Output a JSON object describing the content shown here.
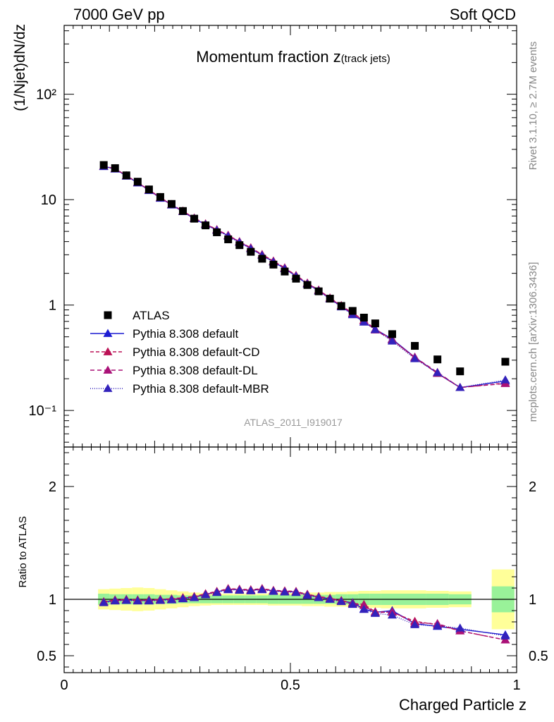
{
  "header": {
    "left": "7000 GeV pp",
    "right": "Soft QCD"
  },
  "side": {
    "rivet": "Rivet 3.1.10, ≥ 2.7M events",
    "mcplots": "mcplots.cern.ch [arXiv:1306.3436]"
  },
  "chart_data": [
    {
      "type": "scatter",
      "title_main": "Momentum fraction ",
      "title_var": "z",
      "title_sub": "(track jets)",
      "ylabel": "(1/Njet)dN/dz",
      "yscale": "log",
      "ylim": [
        0.045,
        450
      ],
      "xlim": [
        0,
        1
      ],
      "y_tick_labels": [
        "10⁻¹",
        "1",
        "10",
        "10²"
      ],
      "watermark": "ATLAS_2011_I919017",
      "legend_position": "lower-left",
      "x": [
        0.0875,
        0.1125,
        0.1375,
        0.1625,
        0.1875,
        0.2125,
        0.2375,
        0.2625,
        0.2875,
        0.3125,
        0.3375,
        0.3625,
        0.3875,
        0.4125,
        0.4375,
        0.4625,
        0.4875,
        0.5125,
        0.5375,
        0.5625,
        0.5875,
        0.6125,
        0.6375,
        0.6625,
        0.6875,
        0.725,
        0.775,
        0.825,
        0.875,
        0.975
      ],
      "series": [
        {
          "name": "ATLAS",
          "color": "#000000",
          "marker": "square",
          "values": [
            21.3,
            19.9,
            17.0,
            14.8,
            12.5,
            10.6,
            9.1,
            7.8,
            6.6,
            5.7,
            4.9,
            4.2,
            3.7,
            3.2,
            2.75,
            2.42,
            2.08,
            1.78,
            1.55,
            1.35,
            1.15,
            0.98,
            0.88,
            0.76,
            0.67,
            0.53,
            0.41,
            0.305,
            0.235,
            0.29
          ]
        },
        {
          "name": "Pythia 8.308 default",
          "color": "#1c1cd2",
          "marker": "triangle",
          "dash": "",
          "values": [
            20.7,
            19.6,
            16.8,
            14.5,
            12.3,
            10.4,
            8.95,
            7.7,
            6.6,
            5.8,
            5.15,
            4.55,
            3.95,
            3.45,
            2.98,
            2.58,
            2.22,
            1.88,
            1.59,
            1.37,
            1.15,
            0.97,
            0.82,
            0.69,
            0.59,
            0.475,
            0.32,
            0.225,
            0.165,
            0.19
          ]
        },
        {
          "name": "Pythia 8.308 default-CD",
          "color": "#bb1155",
          "marker": "triangle",
          "dash": "5,3",
          "values": [
            20.8,
            19.7,
            16.9,
            14.6,
            12.4,
            10.5,
            9.0,
            7.8,
            6.7,
            5.9,
            5.2,
            4.6,
            4.0,
            3.5,
            3.02,
            2.62,
            2.26,
            1.91,
            1.62,
            1.39,
            1.17,
            0.99,
            0.84,
            0.72,
            0.59,
            0.47,
            0.315,
            0.225,
            0.165,
            0.182
          ]
        },
        {
          "name": "Pythia 8.308 default-DL",
          "color": "#aa1177",
          "marker": "triangle",
          "dash": "6,4",
          "values": [
            20.7,
            19.6,
            16.8,
            14.5,
            12.3,
            10.4,
            8.95,
            7.75,
            6.65,
            5.85,
            5.18,
            4.58,
            3.98,
            3.48,
            3.0,
            2.6,
            2.24,
            1.9,
            1.61,
            1.38,
            1.16,
            0.98,
            0.83,
            0.71,
            0.58,
            0.465,
            0.32,
            0.23,
            0.165,
            0.18
          ]
        },
        {
          "name": "Pythia 8.308 default-MBR",
          "color": "#3322bb",
          "marker": "triangle",
          "dash": "1,2",
          "values": [
            20.6,
            19.5,
            16.7,
            14.4,
            12.2,
            10.3,
            8.9,
            7.7,
            6.6,
            5.8,
            5.12,
            4.5,
            3.94,
            3.42,
            2.96,
            2.56,
            2.21,
            1.87,
            1.58,
            1.36,
            1.14,
            0.96,
            0.81,
            0.69,
            0.585,
            0.455,
            0.31,
            0.228,
            0.165,
            0.195
          ]
        }
      ]
    },
    {
      "type": "line",
      "ylabel": "Ratio to ATLAS",
      "xlabel": "Charged Particle z",
      "ylim": [
        0.35,
        2.35
      ],
      "xlim": [
        0,
        1
      ],
      "x_ticks": [
        0,
        0.5,
        1
      ],
      "x_tick_labels": [
        "0",
        "0.5",
        "1"
      ],
      "y_ticks": [
        0.5,
        1,
        2
      ],
      "y_tick_labels": [
        "0.5",
        "1",
        "2"
      ],
      "bands": [
        {
          "x0": 0.075,
          "x1": 0.1,
          "stat": [
            0.95,
            1.05
          ],
          "total": [
            0.91,
            1.09
          ]
        },
        {
          "x0": 0.1,
          "x1": 0.125,
          "stat": [
            0.955,
            1.045
          ],
          "total": [
            0.905,
            1.095
          ]
        },
        {
          "x0": 0.125,
          "x1": 0.15,
          "stat": [
            0.955,
            1.045
          ],
          "total": [
            0.9,
            1.1
          ]
        },
        {
          "x0": 0.15,
          "x1": 0.175,
          "stat": [
            0.955,
            1.045
          ],
          "total": [
            0.895,
            1.105
          ]
        },
        {
          "x0": 0.175,
          "x1": 0.2,
          "stat": [
            0.955,
            1.045
          ],
          "total": [
            0.9,
            1.1
          ]
        },
        {
          "x0": 0.2,
          "x1": 0.225,
          "stat": [
            0.96,
            1.04
          ],
          "total": [
            0.91,
            1.09
          ]
        },
        {
          "x0": 0.225,
          "x1": 0.25,
          "stat": [
            0.96,
            1.04
          ],
          "total": [
            0.92,
            1.08
          ]
        },
        {
          "x0": 0.25,
          "x1": 0.275,
          "stat": [
            0.965,
            1.035
          ],
          "total": [
            0.93,
            1.07
          ]
        },
        {
          "x0": 0.275,
          "x1": 0.3,
          "stat": [
            0.965,
            1.035
          ],
          "total": [
            0.94,
            1.06
          ]
        },
        {
          "x0": 0.3,
          "x1": 0.325,
          "stat": [
            0.965,
            1.035
          ],
          "total": [
            0.945,
            1.055
          ]
        },
        {
          "x0": 0.325,
          "x1": 0.35,
          "stat": [
            0.965,
            1.035
          ],
          "total": [
            0.95,
            1.05
          ]
        },
        {
          "x0": 0.35,
          "x1": 0.375,
          "stat": [
            0.965,
            1.035
          ],
          "total": [
            0.95,
            1.05
          ]
        },
        {
          "x0": 0.375,
          "x1": 0.4,
          "stat": [
            0.965,
            1.035
          ],
          "total": [
            0.95,
            1.05
          ]
        },
        {
          "x0": 0.4,
          "x1": 0.425,
          "stat": [
            0.965,
            1.035
          ],
          "total": [
            0.95,
            1.05
          ]
        },
        {
          "x0": 0.425,
          "x1": 0.45,
          "stat": [
            0.965,
            1.035
          ],
          "total": [
            0.95,
            1.05
          ]
        },
        {
          "x0": 0.45,
          "x1": 0.475,
          "stat": [
            0.96,
            1.04
          ],
          "total": [
            0.945,
            1.055
          ]
        },
        {
          "x0": 0.475,
          "x1": 0.5,
          "stat": [
            0.96,
            1.04
          ],
          "total": [
            0.945,
            1.055
          ]
        },
        {
          "x0": 0.5,
          "x1": 0.525,
          "stat": [
            0.96,
            1.04
          ],
          "total": [
            0.945,
            1.055
          ]
        },
        {
          "x0": 0.525,
          "x1": 0.55,
          "stat": [
            0.96,
            1.04
          ],
          "total": [
            0.94,
            1.06
          ]
        },
        {
          "x0": 0.55,
          "x1": 0.575,
          "stat": [
            0.96,
            1.04
          ],
          "total": [
            0.94,
            1.06
          ]
        },
        {
          "x0": 0.575,
          "x1": 0.6,
          "stat": [
            0.96,
            1.04
          ],
          "total": [
            0.935,
            1.065
          ]
        },
        {
          "x0": 0.6,
          "x1": 0.625,
          "stat": [
            0.955,
            1.045
          ],
          "total": [
            0.935,
            1.065
          ]
        },
        {
          "x0": 0.625,
          "x1": 0.65,
          "stat": [
            0.955,
            1.045
          ],
          "total": [
            0.93,
            1.07
          ]
        },
        {
          "x0": 0.65,
          "x1": 0.675,
          "stat": [
            0.95,
            1.05
          ],
          "total": [
            0.925,
            1.075
          ]
        },
        {
          "x0": 0.675,
          "x1": 0.7,
          "stat": [
            0.95,
            1.05
          ],
          "total": [
            0.925,
            1.075
          ]
        },
        {
          "x0": 0.7,
          "x1": 0.75,
          "stat": [
            0.95,
            1.05
          ],
          "total": [
            0.92,
            1.08
          ]
        },
        {
          "x0": 0.75,
          "x1": 0.8,
          "stat": [
            0.95,
            1.05
          ],
          "total": [
            0.92,
            1.08
          ]
        },
        {
          "x0": 0.8,
          "x1": 0.85,
          "stat": [
            0.95,
            1.05
          ],
          "total": [
            0.925,
            1.075
          ]
        },
        {
          "x0": 0.85,
          "x1": 0.9,
          "stat": [
            0.955,
            1.045
          ],
          "total": [
            0.93,
            1.07
          ]
        },
        {
          "x0": 0.945,
          "x1": 0.995,
          "stat": [
            0.885,
            1.115
          ],
          "total": [
            0.735,
            1.265
          ]
        }
      ],
      "series": [
        {
          "name": "Pythia 8.308 default",
          "color": "#1c1cd2",
          "dash": "",
          "values": [
            0.975,
            0.99,
            0.995,
            0.99,
            0.99,
            0.995,
            1.0,
            1.01,
            1.02,
            1.045,
            1.065,
            1.09,
            1.085,
            1.08,
            1.09,
            1.075,
            1.07,
            1.065,
            1.04,
            1.02,
            1.005,
            0.985,
            0.97,
            0.915,
            0.885,
            0.9,
            0.785,
            0.76,
            0.735,
            0.685
          ]
        },
        {
          "name": "Pythia 8.308 default-CD",
          "color": "#bb1155",
          "dash": "5,3",
          "values": [
            0.98,
            0.995,
            1.0,
            0.995,
            0.995,
            1.0,
            1.005,
            1.015,
            1.025,
            1.05,
            1.07,
            1.095,
            1.09,
            1.085,
            1.095,
            1.08,
            1.075,
            1.07,
            1.045,
            1.025,
            1.01,
            0.99,
            0.965,
            0.955,
            0.89,
            0.885,
            0.805,
            0.775,
            0.72,
            0.64
          ]
        },
        {
          "name": "Pythia 8.308 default-DL",
          "color": "#aa1177",
          "dash": "6,4",
          "values": [
            0.975,
            0.99,
            0.995,
            0.99,
            0.99,
            0.995,
            1.0,
            1.01,
            1.02,
            1.045,
            1.065,
            1.09,
            1.085,
            1.08,
            1.09,
            1.075,
            1.07,
            1.065,
            1.04,
            1.02,
            1.005,
            0.985,
            0.96,
            0.945,
            0.88,
            0.89,
            0.79,
            0.785,
            0.72,
            0.64
          ]
        },
        {
          "name": "Pythia 8.308 default-MBR",
          "color": "#3322bb",
          "dash": "1,2",
          "values": [
            0.97,
            0.985,
            0.99,
            0.985,
            0.985,
            0.99,
            0.995,
            1.005,
            1.015,
            1.04,
            1.06,
            1.085,
            1.08,
            1.075,
            1.085,
            1.07,
            1.065,
            1.06,
            1.035,
            1.015,
            1.0,
            0.98,
            0.955,
            0.91,
            0.875,
            0.86,
            0.775,
            0.765,
            0.745,
            0.675
          ]
        }
      ]
    }
  ]
}
